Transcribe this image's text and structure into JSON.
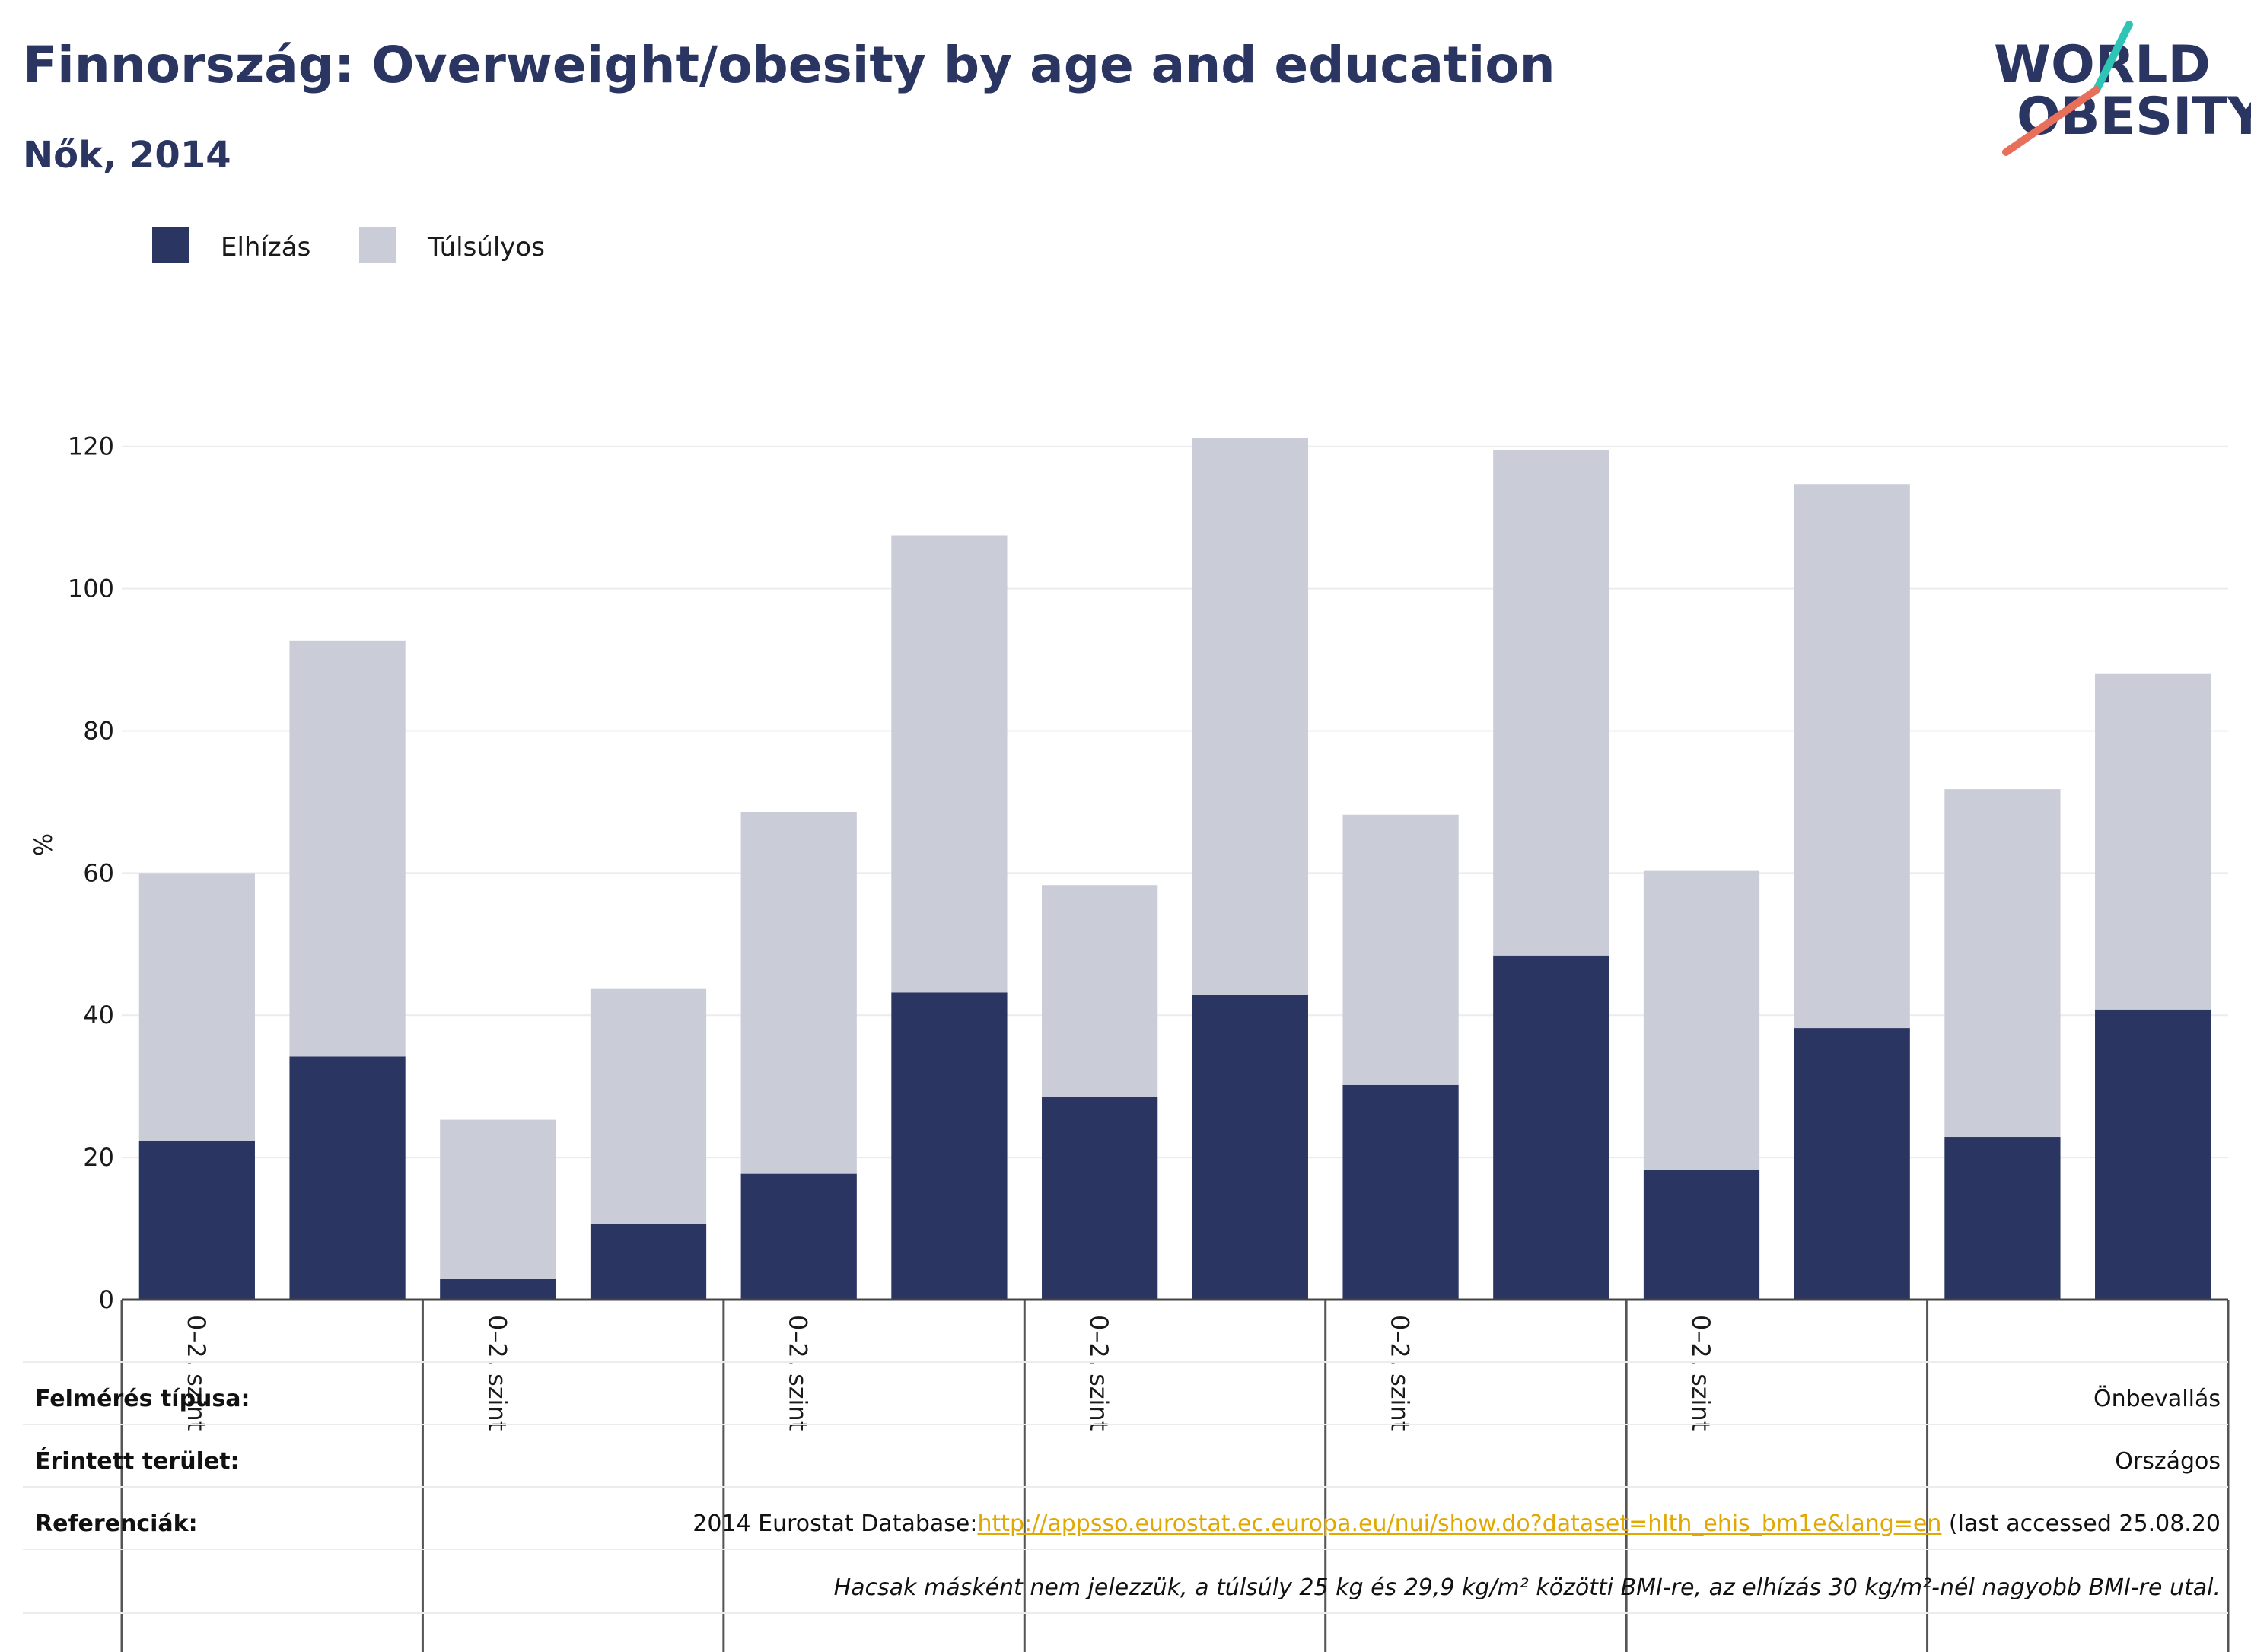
{
  "header": {
    "title": "Finnország: Overweight/obesity by age and education",
    "subtitle": "Nők, 2014"
  },
  "logo": {
    "line1": "WORLD",
    "line2": "OBESITY",
    "slash_colors": [
      "#2ec4b6",
      "#e8705a"
    ]
  },
  "colors": {
    "obese": "#2a3562",
    "overweight": "#cacdd8",
    "grid": "#ececf0",
    "link": "#e0a800"
  },
  "legend": [
    {
      "label": "Elhízás",
      "color": "#2a3562"
    },
    {
      "label": "Túlsúlyos",
      "color": "#cacdd8"
    }
  ],
  "chart_data": {
    "type": "bar",
    "stacked": true,
    "ylabel": "%",
    "ylim": [
      0,
      125
    ],
    "yticks": [
      0,
      20,
      40,
      60,
      80,
      100,
      120
    ],
    "category_labels": [
      "0–2. szint",
      "",
      "0–2. szint",
      "",
      "0–2. szint",
      "",
      "0–2. szint",
      "",
      "0–2. szint",
      "",
      "0–2. szint",
      "",
      "",
      ""
    ],
    "series": [
      {
        "name": "Elhízás",
        "values": [
          22.3,
          34.2,
          2.9,
          10.6,
          17.7,
          43.2,
          28.5,
          42.9,
          30.2,
          48.4,
          18.3,
          38.2,
          22.9,
          40.8
        ]
      },
      {
        "name": "Túlsúlyos",
        "values": [
          37.7,
          58.5,
          22.4,
          33.1,
          50.9,
          64.3,
          29.8,
          78.3,
          38.0,
          71.1,
          42.1,
          76.5,
          48.9,
          47.2
        ]
      }
    ],
    "group_count": 7,
    "grid": true,
    "legend_position": "top-left"
  },
  "footer": {
    "survey_type_label": "Felmérés típusa:",
    "survey_type_value": "Önbevallás",
    "area_label": "Érintett terület:",
    "area_value": "Országos",
    "references_label": "Referenciák:",
    "reference_prefix": "2014 Eurostat Database:",
    "reference_link": "http://appsso.eurostat.ec.europa.eu/nui/show.do?dataset=hlth_ehis_bm1e&lang=en",
    "reference_suffix": " (last accessed 25.08.20",
    "note": "Hacsak másként nem jelezzük, a túlsúly 25 kg és 29,9 kg/m² közötti BMI-re, az elhízás 30 kg/m²-nél nagyobb BMI-re utal."
  }
}
